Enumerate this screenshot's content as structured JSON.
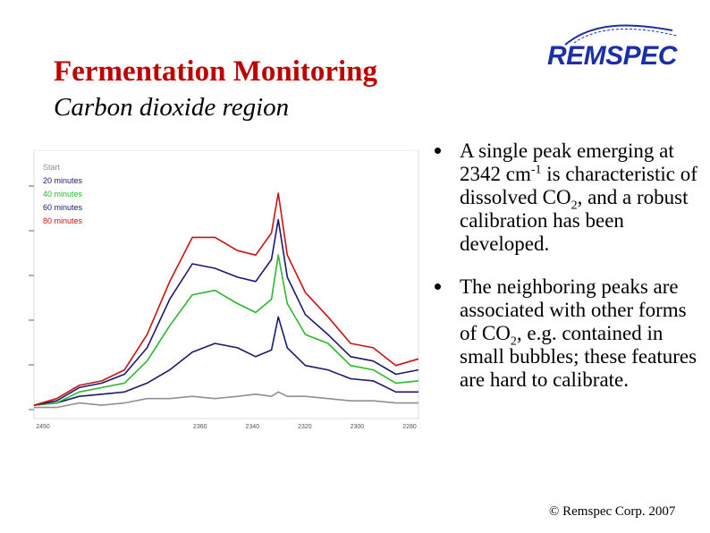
{
  "title": "Fermentation Monitoring",
  "subtitle": "Carbon dioxide region",
  "logo": {
    "text": "REMSPEC",
    "color": "#1c2fa8"
  },
  "bullets": [
    {
      "pre": "A single peak emerging at 2342 cm",
      "sup": "-1",
      "mid": " is characteristic of dissolved CO",
      "sub": "2",
      "post": ", and a robust calibration has been developed."
    },
    {
      "pre": "The neighboring peaks are associated with other forms of CO",
      "sub": "2",
      "post": ", e.g. contained in small bubbles; these features are hard to calibrate."
    }
  ],
  "copyright": "© Remspec Corp. 2007",
  "chart_data": {
    "type": "line",
    "legend": [
      {
        "name": "Start",
        "color": "#909090"
      },
      {
        "name": "20 minutes",
        "color": "#1a1a6e"
      },
      {
        "name": "40 minutes",
        "color": "#2cb82c"
      },
      {
        "name": "60 minutes",
        "color": "#1a1a6e"
      },
      {
        "name": "80 minutes",
        "color": "#cc1111"
      }
    ],
    "x_ticks": [
      "2450",
      "",
      "",
      "2360",
      "2340",
      "2320",
      "2300",
      "2280"
    ],
    "xlabel": "",
    "xlim": [
      2450,
      2280
    ],
    "ylim": [
      0,
      1
    ],
    "series": [
      {
        "name": "Start",
        "color": "#909090",
        "x": [
          2450,
          2440,
          2430,
          2420,
          2410,
          2400,
          2390,
          2380,
          2370,
          2360,
          2352,
          2345,
          2342,
          2338,
          2330,
          2320,
          2310,
          2300,
          2290,
          2280
        ],
        "y": [
          0.03,
          0.03,
          0.05,
          0.04,
          0.05,
          0.07,
          0.07,
          0.08,
          0.07,
          0.08,
          0.09,
          0.08,
          0.1,
          0.08,
          0.08,
          0.07,
          0.06,
          0.06,
          0.05,
          0.05
        ]
      },
      {
        "name": "20 minutes",
        "color": "#1a1a6e",
        "x": [
          2450,
          2440,
          2430,
          2420,
          2410,
          2400,
          2390,
          2380,
          2370,
          2360,
          2352,
          2345,
          2342,
          2338,
          2330,
          2320,
          2310,
          2300,
          2290,
          2280
        ],
        "y": [
          0.04,
          0.05,
          0.08,
          0.09,
          0.1,
          0.14,
          0.2,
          0.28,
          0.32,
          0.3,
          0.26,
          0.29,
          0.44,
          0.3,
          0.22,
          0.2,
          0.16,
          0.15,
          0.1,
          0.1
        ]
      },
      {
        "name": "40 minutes",
        "color": "#2cb82c",
        "x": [
          2450,
          2440,
          2430,
          2420,
          2410,
          2400,
          2390,
          2380,
          2370,
          2360,
          2352,
          2345,
          2342,
          2338,
          2330,
          2320,
          2310,
          2300,
          2290,
          2280
        ],
        "y": [
          0.04,
          0.05,
          0.1,
          0.12,
          0.14,
          0.24,
          0.4,
          0.54,
          0.56,
          0.5,
          0.46,
          0.52,
          0.72,
          0.5,
          0.36,
          0.32,
          0.22,
          0.2,
          0.14,
          0.15
        ]
      },
      {
        "name": "60 minutes",
        "color": "#1a1a6e",
        "x": [
          2450,
          2440,
          2430,
          2420,
          2410,
          2400,
          2390,
          2380,
          2370,
          2360,
          2352,
          2345,
          2342,
          2338,
          2330,
          2320,
          2310,
          2300,
          2290,
          2280
        ],
        "y": [
          0.04,
          0.06,
          0.12,
          0.14,
          0.18,
          0.3,
          0.52,
          0.68,
          0.66,
          0.62,
          0.6,
          0.7,
          0.88,
          0.62,
          0.45,
          0.36,
          0.26,
          0.24,
          0.18,
          0.2
        ]
      },
      {
        "name": "80 minutes",
        "color": "#cc1111",
        "x": [
          2450,
          2440,
          2430,
          2420,
          2410,
          2400,
          2390,
          2380,
          2370,
          2360,
          2352,
          2345,
          2342,
          2338,
          2330,
          2320,
          2310,
          2300,
          2290,
          2280
        ],
        "y": [
          0.04,
          0.07,
          0.13,
          0.15,
          0.2,
          0.36,
          0.6,
          0.8,
          0.8,
          0.74,
          0.72,
          0.82,
          1.0,
          0.72,
          0.55,
          0.44,
          0.32,
          0.3,
          0.22,
          0.25
        ]
      }
    ]
  }
}
